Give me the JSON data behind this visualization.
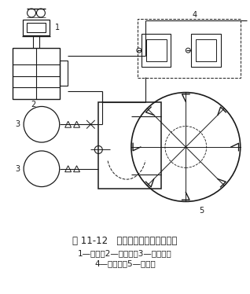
{
  "title_line1": "图 11-12   碾泥机室除尘系统布置图",
  "title_line2": "1—风机；2—除尘器；3—碾泥机；",
  "title_line3": "4—贮焦槽；5—贮料槽",
  "bg_color": "#ffffff",
  "lc": "#1a1a1a"
}
